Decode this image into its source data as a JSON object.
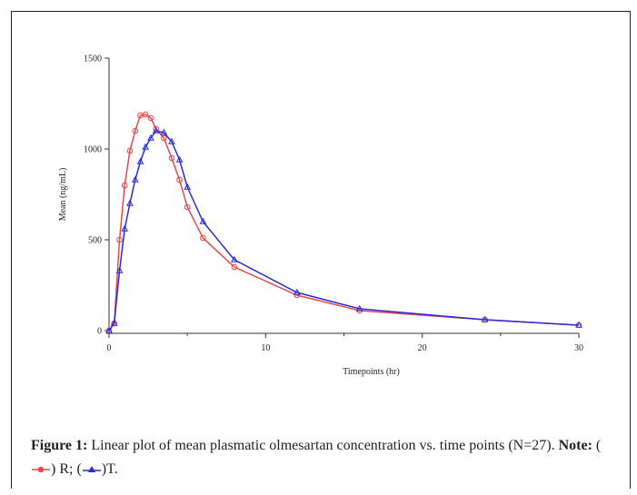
{
  "chart_data": {
    "type": "line",
    "xlabel": "Timepoints (hr)",
    "ylabel": "Mean (ng/mL)",
    "xlim": [
      0,
      30
    ],
    "ylim": [
      0,
      1500
    ],
    "xticks": [
      0,
      10,
      20,
      30
    ],
    "yticks": [
      0,
      500,
      1000,
      1500
    ],
    "grid": false,
    "series": [
      {
        "name": "R",
        "color": "#e8474c",
        "marker": "circle",
        "x": [
          0,
          0.33,
          0.67,
          1,
          1.33,
          1.67,
          2,
          2.33,
          2.67,
          3,
          3.5,
          4,
          4.5,
          5,
          6,
          8,
          12,
          16,
          24,
          30
        ],
        "y": [
          0,
          40,
          500,
          800,
          990,
          1100,
          1185,
          1190,
          1170,
          1110,
          1060,
          950,
          830,
          680,
          510,
          350,
          195,
          110,
          60,
          30
        ]
      },
      {
        "name": "T",
        "color": "#2a2ad8",
        "marker": "triangle",
        "x": [
          0,
          0.33,
          0.67,
          1,
          1.33,
          1.67,
          2,
          2.33,
          2.67,
          3,
          3.5,
          4,
          4.5,
          5,
          6,
          8,
          12,
          16,
          24,
          30
        ],
        "y": [
          0,
          40,
          330,
          560,
          700,
          830,
          930,
          1010,
          1060,
          1100,
          1090,
          1040,
          940,
          790,
          600,
          390,
          210,
          120,
          60,
          30
        ]
      }
    ]
  },
  "caption": {
    "label": "Figure 1:",
    "text": "Linear plot of mean plasmatic olmesartan concentration vs. time points (N=27).",
    "note_label": "Note:",
    "legend_r_text": "R;",
    "legend_t_text": "T."
  }
}
